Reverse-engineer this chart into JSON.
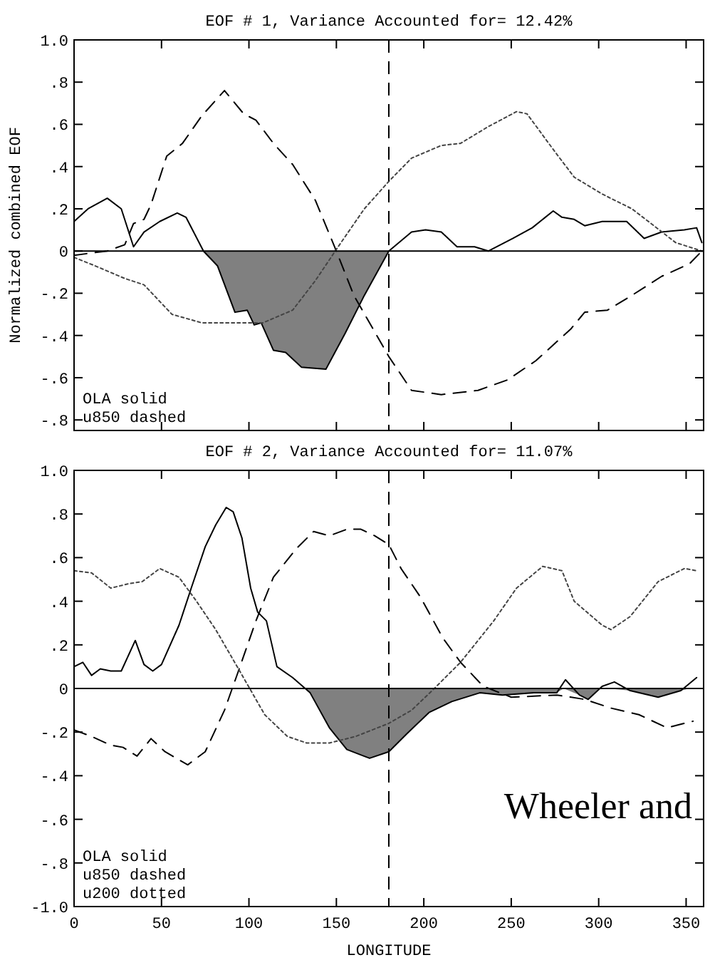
{
  "chart_data": [
    {
      "type": "line",
      "title": "EOF # 1,  Variance Accounted for= 12.42%",
      "ylabel": "Normalized combined EOF",
      "xlim": [
        0,
        360
      ],
      "xticks": [
        0,
        50,
        100,
        150,
        200,
        250,
        300,
        350
      ],
      "ylim": [
        -0.85,
        1.0
      ],
      "yticks": [
        {
          "value": 1,
          "label": "1.0"
        },
        {
          "value": 0.8,
          "label": ".8"
        },
        {
          "value": 0.6,
          "label": ".6"
        },
        {
          "value": 0.4,
          "label": ".4"
        },
        {
          "value": 0.2,
          "label": ".2"
        },
        {
          "value": 0,
          "label": "0"
        },
        {
          "value": -0.2,
          "label": "-.2"
        },
        {
          "value": -0.4,
          "label": "-.4"
        },
        {
          "value": -0.6,
          "label": "-.6"
        },
        {
          "value": -0.8,
          "label": "-.8"
        }
      ],
      "tick_labels": "y",
      "series": [
        {
          "type": "area",
          "color": "#808080",
          "x": [
            74,
            82,
            92,
            99,
            103,
            107,
            114,
            121,
            130,
            144,
            155,
            166,
            180
          ],
          "values": [
            0,
            -0.07,
            -0.29,
            -0.28,
            -0.35,
            -0.34,
            -0.47,
            -0.48,
            -0.55,
            -0.56,
            -0.39,
            -0.21,
            0
          ]
        },
        {
          "color": "#000000",
          "line_style": "solid",
          "x": [
            0,
            8,
            19,
            27,
            34,
            40,
            49,
            59,
            64,
            74,
            82,
            92,
            99,
            103,
            107,
            114,
            121,
            130,
            144,
            155,
            166,
            180,
            193,
            201,
            210,
            219,
            229,
            237,
            251,
            262,
            274,
            279,
            286,
            292,
            302,
            316,
            326,
            336,
            349,
            356,
            359
          ],
          "values": [
            0.14,
            0.2,
            0.25,
            0.2,
            0.02,
            0.09,
            0.14,
            0.18,
            0.16,
            0,
            -0.07,
            -0.29,
            -0.28,
            -0.35,
            -0.34,
            -0.47,
            -0.48,
            -0.55,
            -0.56,
            -0.39,
            -0.21,
            0,
            0.09,
            0.1,
            0.09,
            0.02,
            0.02,
            0,
            0.06,
            0.11,
            0.19,
            0.16,
            0.15,
            0.12,
            0.14,
            0.14,
            0.06,
            0.09,
            0.1,
            0.11,
            0.04
          ]
        },
        {
          "color": "#000000",
          "line_style": "dashed",
          "x": [
            0,
            19,
            29,
            34,
            40,
            44,
            53,
            62,
            73,
            86,
            97,
            104,
            114,
            125,
            138,
            149,
            160,
            180,
            193,
            210,
            231,
            248,
            264,
            284,
            292,
            305,
            319,
            336,
            352,
            359
          ],
          "values": [
            -0.02,
            0,
            0.03,
            0.13,
            0.15,
            0.22,
            0.45,
            0.51,
            0.64,
            0.76,
            0.65,
            0.62,
            0.51,
            0.41,
            0.24,
            0.02,
            -0.21,
            -0.5,
            -0.66,
            -0.68,
            -0.66,
            -0.61,
            -0.52,
            -0.37,
            -0.29,
            -0.28,
            -0.21,
            -0.12,
            -0.06,
            0
          ]
        },
        {
          "color": "#444444",
          "line_style": "dotted",
          "x": [
            0,
            12,
            29,
            40,
            56,
            73,
            92,
            108,
            125,
            138,
            151,
            166,
            180,
            193,
            210,
            221,
            237,
            253,
            259,
            275,
            286,
            302,
            319,
            330,
            344,
            359
          ],
          "values": [
            -0.03,
            -0.07,
            -0.13,
            -0.16,
            -0.3,
            -0.34,
            -0.34,
            -0.34,
            -0.28,
            -0.14,
            0.02,
            0.2,
            0.33,
            0.44,
            0.5,
            0.51,
            0.59,
            0.66,
            0.65,
            0.47,
            0.35,
            0.27,
            0.2,
            0.13,
            0.04,
            0
          ]
        }
      ],
      "ref_lines": [
        {
          "axis": "x",
          "value": 180,
          "line_style": "dashed",
          "color": "#000000"
        },
        {
          "axis": "y",
          "value": 0,
          "line_style": "solid",
          "color": "#000000"
        }
      ],
      "annotations": [
        "OLA solid",
        "u850 dashed"
      ]
    },
    {
      "type": "line",
      "title": "EOF # 2,  Variance Accounted for= 11.07%",
      "xlabel": "LONGITUDE",
      "xlim": [
        0,
        360
      ],
      "xticks": [
        0,
        50,
        100,
        150,
        200,
        250,
        300,
        350
      ],
      "ylim": [
        -1.0,
        1.0
      ],
      "yticks": [
        {
          "value": 1,
          "label": "1.0"
        },
        {
          "value": 0.8,
          "label": ".8"
        },
        {
          "value": 0.6,
          "label": ".6"
        },
        {
          "value": 0.4,
          "label": ".4"
        },
        {
          "value": 0.2,
          "label": ".2"
        },
        {
          "value": 0,
          "label": "0"
        },
        {
          "value": -0.2,
          "label": "-.2"
        },
        {
          "value": -0.4,
          "label": "-.4"
        },
        {
          "value": -0.6,
          "label": "-.6"
        },
        {
          "value": -0.8,
          "label": "-.8"
        },
        {
          "value": -1,
          "label": "-1.0"
        }
      ],
      "series": [
        {
          "type": "area",
          "color": "#808080",
          "x": [
            132,
            135,
            146,
            156,
            169,
            180,
            190,
            203,
            216,
            232,
            245,
            263,
            276,
            280,
            289,
            294,
            300,
            305,
            318,
            334,
            347,
            352
          ],
          "values": [
            0,
            -0.02,
            -0.18,
            -0.28,
            -0.32,
            -0.29,
            -0.21,
            -0.11,
            -0.06,
            -0.02,
            -0.03,
            -0.02,
            -0.02,
            0,
            -0.03,
            -0.05,
            0,
            0,
            -0.01,
            -0.04,
            -0.01,
            0
          ]
        },
        {
          "color": "#000000",
          "line_style": "solid",
          "x": [
            0,
            5,
            10,
            15,
            21,
            27,
            35,
            40,
            45,
            50,
            60,
            67,
            75,
            81,
            87,
            91,
            96,
            101,
            105,
            110,
            116,
            125,
            135,
            146,
            156,
            169,
            180,
            190,
            203,
            216,
            232,
            245,
            263,
            276,
            281,
            289,
            294,
            302,
            309,
            318,
            334,
            347,
            356
          ],
          "values": [
            0.1,
            0.12,
            0.06,
            0.09,
            0.08,
            0.08,
            0.22,
            0.11,
            0.08,
            0.11,
            0.29,
            0.46,
            0.65,
            0.75,
            0.83,
            0.81,
            0.69,
            0.46,
            0.35,
            0.31,
            0.1,
            0.05,
            -0.02,
            -0.18,
            -0.28,
            -0.32,
            -0.29,
            -0.21,
            -0.11,
            -0.06,
            -0.02,
            -0.03,
            -0.02,
            -0.02,
            0.04,
            -0.03,
            -0.05,
            0.01,
            0.03,
            -0.01,
            -0.04,
            -0.01,
            0.05
          ]
        },
        {
          "color": "#000000",
          "line_style": "dashed",
          "x": [
            0,
            10,
            21,
            28,
            36,
            44,
            52,
            65,
            75,
            86,
            94,
            104,
            114,
            127,
            137,
            146,
            156,
            164,
            172,
            180,
            187,
            198,
            211,
            221,
            234,
            250,
            276,
            292,
            307,
            323,
            339,
            354
          ],
          "values": [
            -0.19,
            -0.22,
            -0.26,
            -0.27,
            -0.31,
            -0.23,
            -0.29,
            -0.35,
            -0.29,
            -0.1,
            0.08,
            0.31,
            0.51,
            0.64,
            0.72,
            0.7,
            0.73,
            0.73,
            0.7,
            0.66,
            0.55,
            0.42,
            0.23,
            0.12,
            0.01,
            -0.04,
            -0.03,
            -0.05,
            -0.09,
            -0.12,
            -0.18,
            -0.15
          ]
        },
        {
          "color": "#444444",
          "line_style": "dotted",
          "x": [
            0,
            10,
            21,
            31,
            39,
            49,
            60,
            70,
            81,
            94,
            109,
            122,
            133,
            146,
            161,
            180,
            193,
            206,
            221,
            240,
            253,
            268,
            279,
            286,
            302,
            307,
            318,
            334,
            349,
            356
          ],
          "values": [
            0.54,
            0.53,
            0.46,
            0.48,
            0.49,
            0.55,
            0.51,
            0.4,
            0.27,
            0.09,
            -0.12,
            -0.22,
            -0.25,
            -0.25,
            -0.22,
            -0.16,
            -0.1,
            0,
            0.12,
            0.31,
            0.46,
            0.56,
            0.54,
            0.4,
            0.29,
            0.27,
            0.33,
            0.49,
            0.55,
            0.54
          ]
        }
      ],
      "ref_lines": [
        {
          "axis": "x",
          "value": 180,
          "line_style": "dashed",
          "color": "#000000"
        },
        {
          "axis": "y",
          "value": 0,
          "line_style": "solid",
          "color": "#000000"
        }
      ],
      "annotations": [
        "OLA solid",
        "u850 dashed",
        "u200 dotted",
        "Wheeler and"
      ]
    }
  ]
}
